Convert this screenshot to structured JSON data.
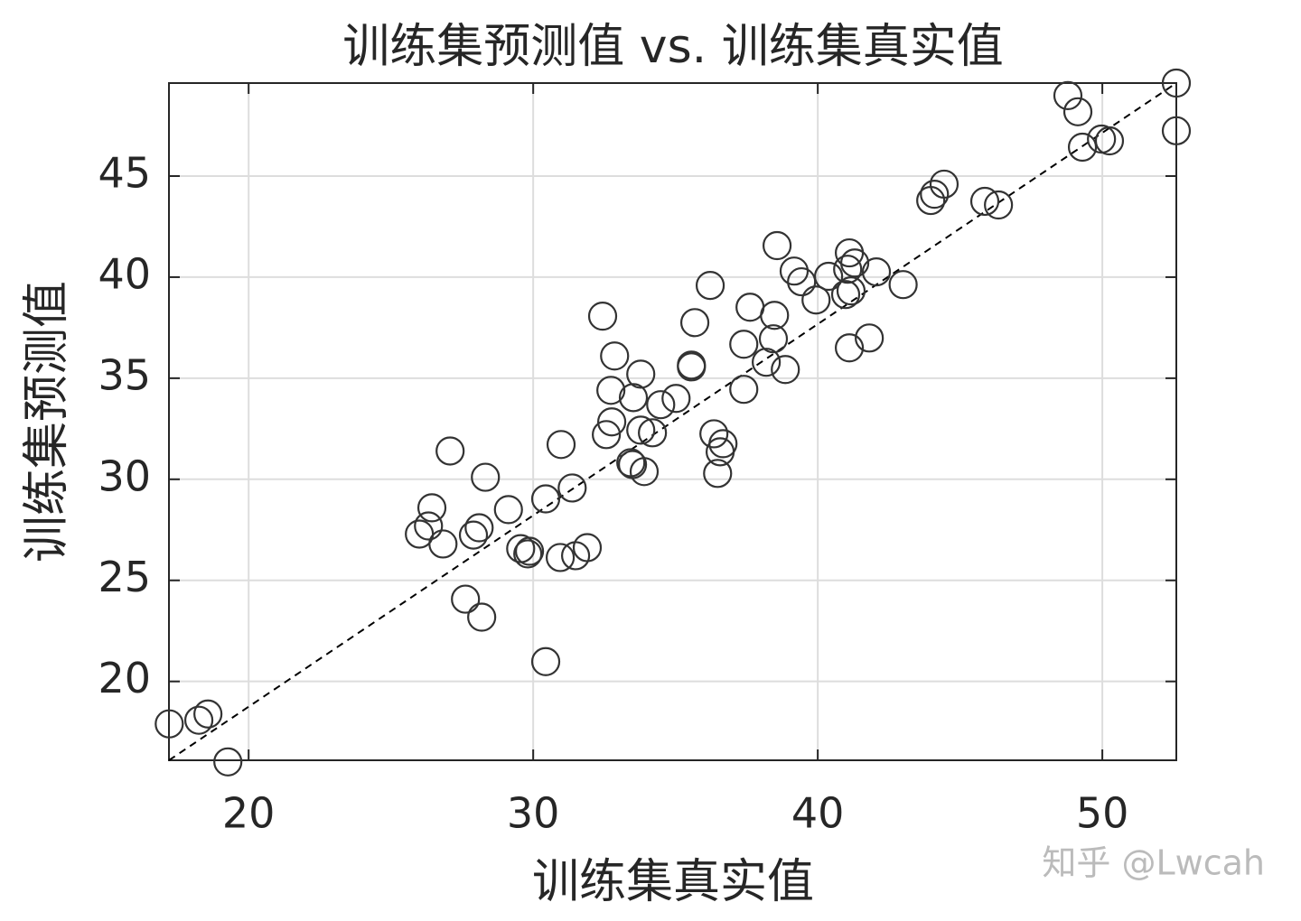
{
  "chart_data": {
    "type": "scatter",
    "title": "训练集预测值 vs. 训练集真实值",
    "xlabel": "训练集真实值",
    "ylabel": "训练集预测值",
    "x": [
      17.21,
      18.25,
      18.57,
      19.27,
      52.6,
      52.6,
      48.79,
      49.14,
      49.3,
      49.97,
      50.25,
      44.44,
      44.1,
      43.97,
      45.87,
      46.35,
      38.57,
      41.11,
      41.3,
      41.05,
      39.17,
      40.38,
      42.06,
      39.43,
      43.0,
      41.17,
      40.98,
      39.94,
      36.22,
      37.62,
      38.48,
      35.68,
      32.44,
      38.44,
      41.81,
      37.4,
      41.11,
      32.86,
      35.56,
      35.56,
      38.19,
      38.86,
      33.78,
      32.73,
      37.4,
      33.52,
      35.02,
      34.48,
      32.76,
      32.57,
      33.78,
      34.19,
      36.35,
      36.67,
      36.57,
      36.48,
      33.43,
      33.49,
      33.9,
      30.98,
      27.08,
      28.32,
      31.37,
      30.44,
      29.13,
      26.44,
      26.32,
      26.0,
      28.1,
      27.9,
      26.83,
      29.56,
      29.87,
      29.81,
      30.95,
      31.9,
      31.49,
      27.62,
      28.19,
      30.44
    ],
    "values": [
      17.9,
      18.08,
      18.39,
      16.02,
      49.6,
      47.24,
      48.98,
      48.18,
      46.43,
      46.83,
      46.74,
      44.6,
      44.1,
      43.79,
      43.75,
      43.57,
      41.56,
      41.2,
      40.7,
      40.39,
      40.3,
      40.04,
      40.26,
      39.77,
      39.63,
      39.32,
      39.14,
      38.87,
      39.59,
      38.51,
      38.11,
      37.75,
      38.07,
      36.95,
      36.99,
      36.68,
      36.5,
      36.1,
      35.65,
      35.56,
      35.79,
      35.43,
      35.2,
      34.4,
      34.45,
      34.04,
      34.0,
      33.69,
      32.84,
      32.21,
      32.43,
      32.3,
      32.25,
      31.76,
      31.36,
      30.29,
      30.82,
      30.73,
      30.38,
      31.72,
      31.4,
      30.1,
      29.57,
      29.03,
      28.5,
      28.59,
      27.69,
      27.29,
      27.6,
      27.24,
      26.8,
      26.57,
      26.44,
      26.31,
      26.13,
      26.62,
      26.22,
      24.07,
      23.18,
      20.98
    ],
    "color": "#333333",
    "xlim": [
      17.2,
      52.6
    ],
    "ylim": [
      16.1,
      49.6
    ],
    "xticks": [
      20,
      30,
      40,
      50
    ],
    "yticks": [
      20,
      25,
      30,
      35,
      40,
      45
    ],
    "grid": true,
    "reference_line": "dashed",
    "watermark": "知乎 @Lwcah"
  }
}
